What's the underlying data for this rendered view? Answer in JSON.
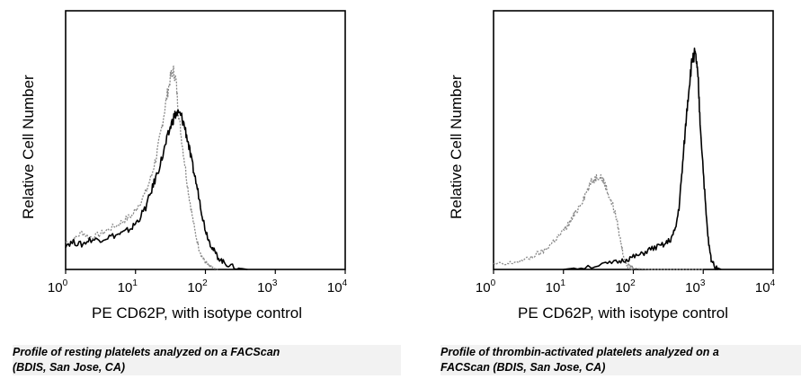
{
  "chart_data": [
    {
      "type": "line",
      "xlabel": "PE CD62P, with isotype control",
      "ylabel": "Relative Cell Number",
      "x_scale": "log",
      "xlim": [
        1,
        10000
      ],
      "ylim": [
        0,
        1
      ],
      "grid": false,
      "x_ticks": [
        {
          "base": "10",
          "exp": "0",
          "value": 1
        },
        {
          "base": "10",
          "exp": "1",
          "value": 10
        },
        {
          "base": "10",
          "exp": "2",
          "value": 100
        },
        {
          "base": "10",
          "exp": "3",
          "value": 1000
        },
        {
          "base": "10",
          "exp": "4",
          "value": 10000
        }
      ],
      "caption_lines": [
        "Profile of resting platelets analyzed on a FACScan",
        "(BDIS, San Jose, CA)"
      ],
      "series": [
        {
          "color": "#888888",
          "style": "dotted",
          "x": [
            1,
            1.3,
            1.7,
            2.2,
            3,
            4,
            5.5,
            7,
            9,
            11,
            14,
            17,
            20,
            23,
            26,
            29,
            32,
            35,
            38,
            41,
            45,
            50,
            56,
            62,
            70,
            80,
            90,
            100,
            115,
            130,
            150
          ],
          "y": [
            0.11,
            0.12,
            0.15,
            0.13,
            0.14,
            0.16,
            0.18,
            0.2,
            0.22,
            0.26,
            0.31,
            0.38,
            0.46,
            0.55,
            0.64,
            0.72,
            0.78,
            0.8,
            0.76,
            0.64,
            0.54,
            0.44,
            0.33,
            0.25,
            0.16,
            0.09,
            0.05,
            0.03,
            0.01,
            0.005,
            0
          ]
        },
        {
          "color": "#000000",
          "style": "solid",
          "x": [
            1,
            1.3,
            1.7,
            2.2,
            3,
            4,
            5.5,
            7,
            9,
            11,
            14,
            17,
            20,
            24,
            28,
            32,
            36,
            40,
            45,
            50,
            56,
            62,
            70,
            80,
            90,
            100,
            115,
            130,
            150,
            180,
            220,
            300,
            400
          ],
          "y": [
            0.1,
            0.11,
            0.1,
            0.12,
            0.12,
            0.13,
            0.14,
            0.15,
            0.17,
            0.2,
            0.25,
            0.32,
            0.38,
            0.45,
            0.52,
            0.58,
            0.62,
            0.63,
            0.62,
            0.58,
            0.52,
            0.45,
            0.38,
            0.3,
            0.22,
            0.16,
            0.11,
            0.08,
            0.05,
            0.03,
            0.015,
            0.005,
            0
          ]
        }
      ]
    },
    {
      "type": "line",
      "xlabel": "PE CD62P, with isotype control",
      "ylabel": "Relative Cell Number",
      "x_scale": "log",
      "xlim": [
        1,
        10000
      ],
      "ylim": [
        0,
        1
      ],
      "grid": false,
      "x_ticks": [
        {
          "base": "10",
          "exp": "0",
          "value": 1
        },
        {
          "base": "10",
          "exp": "1",
          "value": 10
        },
        {
          "base": "10",
          "exp": "2",
          "value": 100
        },
        {
          "base": "10",
          "exp": "3",
          "value": 1000
        },
        {
          "base": "10",
          "exp": "4",
          "value": 10000
        }
      ],
      "caption_lines": [
        "Profile of thrombin-activated platelets analyzed on a",
        "FACScan (BDIS, San Jose, CA)"
      ],
      "series": [
        {
          "color": "#888888",
          "style": "dotted",
          "x": [
            1,
            1.5,
            2,
            3,
            4,
            5,
            6,
            7.5,
            9,
            11,
            13,
            15,
            18,
            21,
            25,
            29,
            33,
            37,
            41,
            46,
            52,
            58,
            65,
            72,
            80,
            90,
            100,
            120,
            160,
            300,
            1000
          ],
          "y": [
            0.02,
            0.02,
            0.03,
            0.04,
            0.06,
            0.07,
            0.09,
            0.12,
            0.14,
            0.17,
            0.2,
            0.23,
            0.27,
            0.31,
            0.35,
            0.37,
            0.38,
            0.36,
            0.33,
            0.29,
            0.25,
            0.2,
            0.12,
            0.06,
            0.02,
            0.01,
            0.005,
            0.003,
            0.001,
            0,
            0
          ]
        },
        {
          "color": "#000000",
          "style": "solid",
          "x": [
            10,
            20,
            40,
            60,
            80,
            100,
            130,
            170,
            220,
            280,
            340,
            400,
            450,
            500,
            550,
            600,
            650,
            700,
            750,
            800,
            850,
            900,
            1000,
            1100,
            1200,
            1300,
            1500,
            1800
          ],
          "y": [
            0,
            0.01,
            0.02,
            0.03,
            0.04,
            0.05,
            0.06,
            0.08,
            0.09,
            0.1,
            0.12,
            0.16,
            0.25,
            0.4,
            0.55,
            0.68,
            0.78,
            0.85,
            0.87,
            0.84,
            0.75,
            0.6,
            0.4,
            0.22,
            0.1,
            0.04,
            0.01,
            0
          ]
        }
      ]
    }
  ]
}
